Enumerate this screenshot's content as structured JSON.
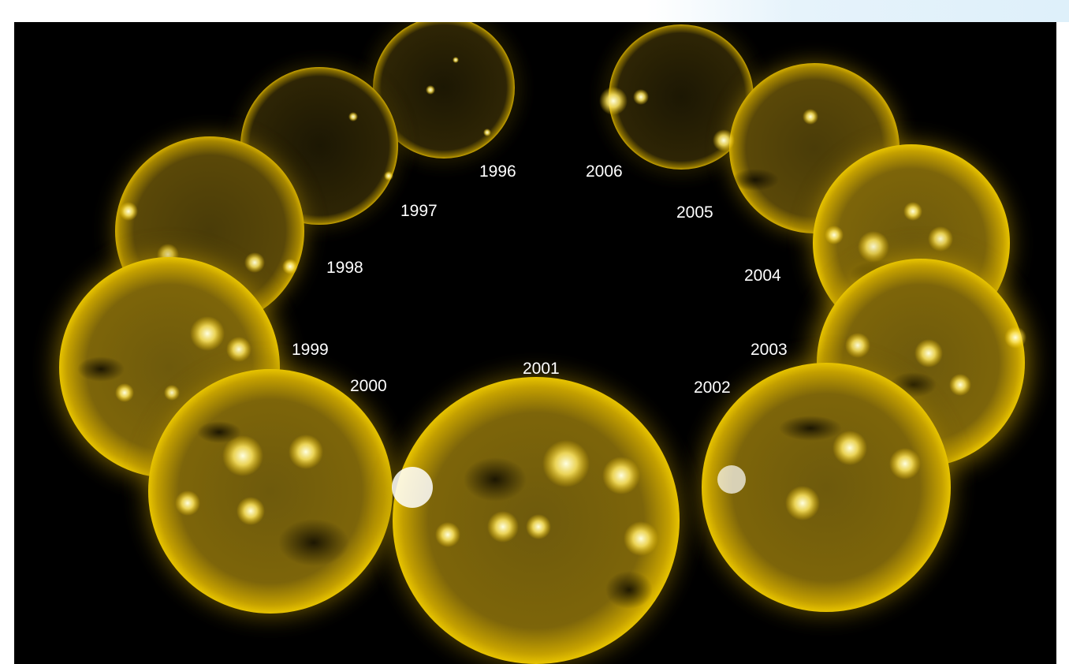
{
  "image": {
    "subject": "solar cycle composite",
    "background_color": "#000000",
    "sun_colors": {
      "limb_glow": "#c9a400",
      "disk_dark": "#3a2f06",
      "active_bright": "#fff6b0"
    }
  },
  "years": {
    "y1996": "1996",
    "y1997": "1997",
    "y1998": "1998",
    "y1999": "1999",
    "y2000": "2000",
    "y2001": "2001",
    "y2002": "2002",
    "y2003": "2003",
    "y2004": "2004",
    "y2005": "2005",
    "y2006": "2006"
  }
}
